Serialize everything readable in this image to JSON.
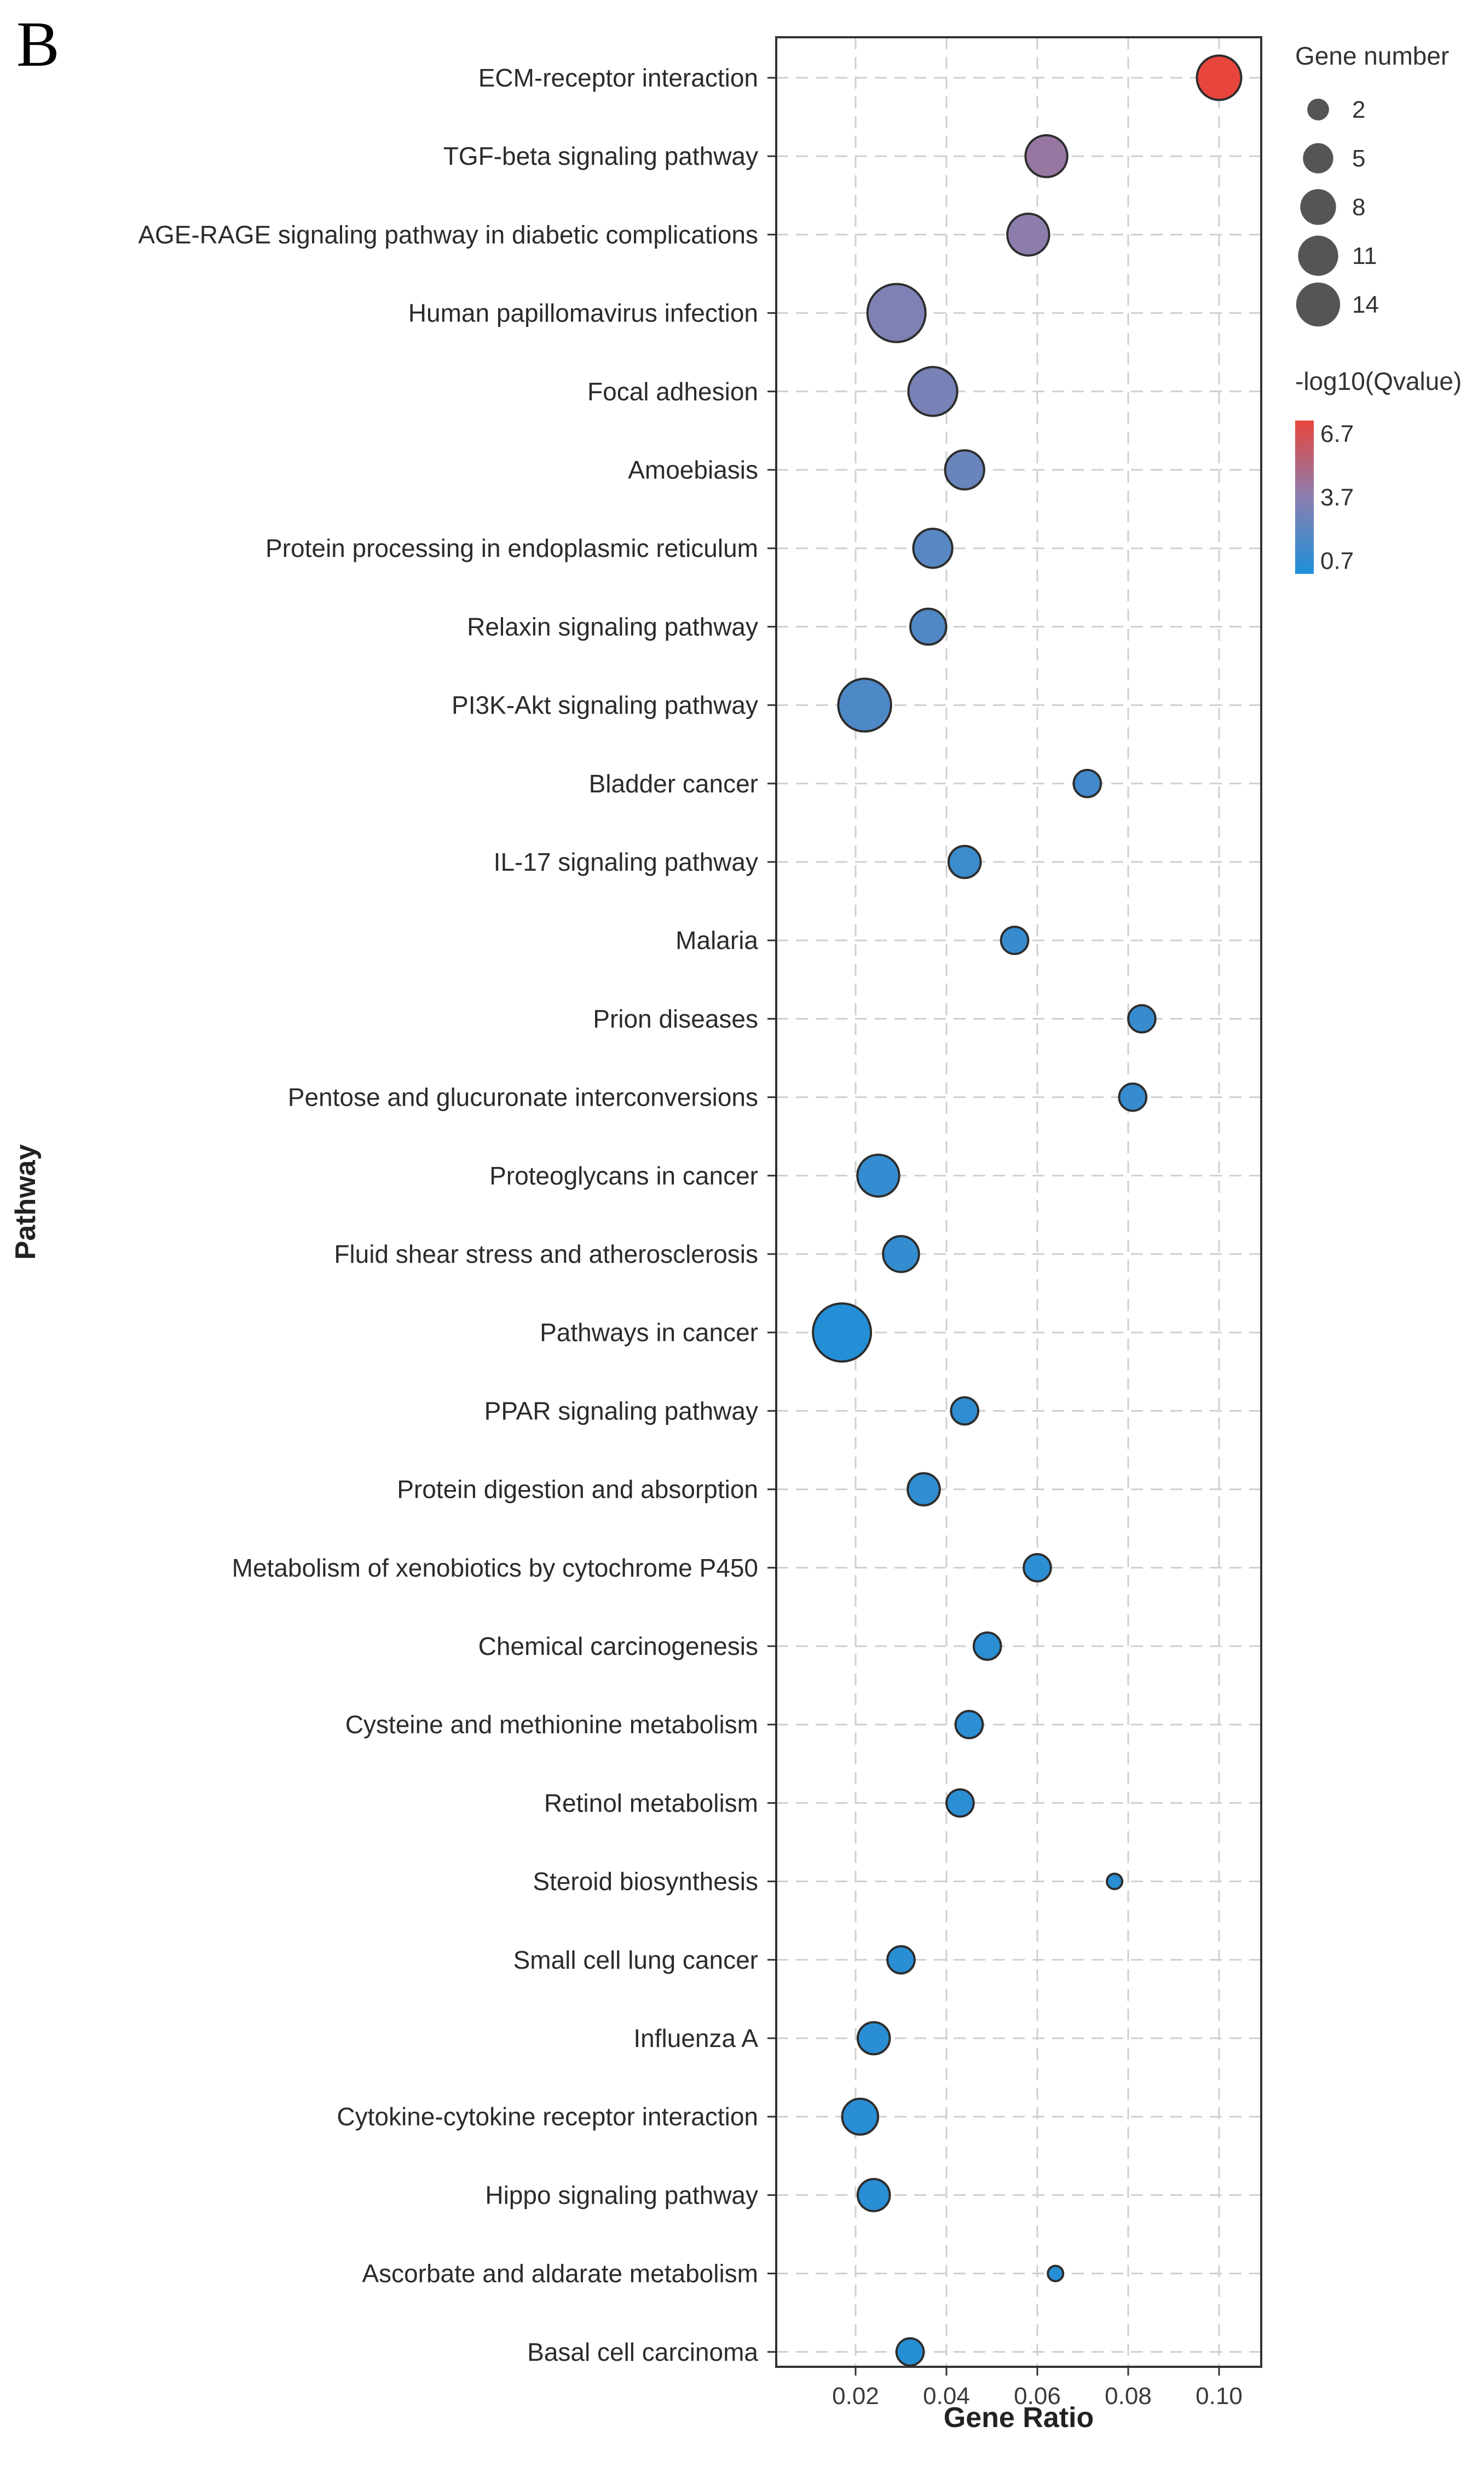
{
  "panel_label": "B",
  "chart_data": {
    "type": "scatter",
    "title": "",
    "xlabel": "Gene Ratio",
    "ylabel": "Pathway",
    "xlim": [
      0.0,
      0.1
    ],
    "xticks": [
      "0.02",
      "0.04",
      "0.06",
      "0.08",
      "0.10"
    ],
    "grid": true,
    "legend_placement": "right",
    "points": [
      {
        "pathway": "ECM-receptor interaction",
        "gene_ratio": 0.1,
        "gene_number": 7,
        "neg_log10_q": 6.7
      },
      {
        "pathway": "TGF-beta signaling pathway",
        "gene_ratio": 0.062,
        "gene_number": 6,
        "neg_log10_q": 4.1
      },
      {
        "pathway": "AGE-RAGE signaling pathway in diabetic complications",
        "gene_ratio": 0.058,
        "gene_number": 6,
        "neg_log10_q": 3.8
      },
      {
        "pathway": "Human papillomavirus infection",
        "gene_ratio": 0.029,
        "gene_number": 14,
        "neg_log10_q": 3.4
      },
      {
        "pathway": "Focal adhesion",
        "gene_ratio": 0.037,
        "gene_number": 9,
        "neg_log10_q": 3.2
      },
      {
        "pathway": "Amoebiasis",
        "gene_ratio": 0.044,
        "gene_number": 5,
        "neg_log10_q": 2.8
      },
      {
        "pathway": "Protein processing in endoplasmic reticulum",
        "gene_ratio": 0.037,
        "gene_number": 5,
        "neg_log10_q": 2.3
      },
      {
        "pathway": "Relaxin signaling pathway",
        "gene_ratio": 0.036,
        "gene_number": 4,
        "neg_log10_q": 2.1
      },
      {
        "pathway": "PI3K-Akt signaling pathway",
        "gene_ratio": 0.022,
        "gene_number": 11,
        "neg_log10_q": 2.0
      },
      {
        "pathway": "Bladder cancer",
        "gene_ratio": 0.071,
        "gene_number": 2,
        "neg_log10_q": 1.7
      },
      {
        "pathway": "IL-17 signaling pathway",
        "gene_ratio": 0.044,
        "gene_number": 3,
        "neg_log10_q": 1.5
      },
      {
        "pathway": "Malaria",
        "gene_ratio": 0.055,
        "gene_number": 2,
        "neg_log10_q": 1.4
      },
      {
        "pathway": "Prion diseases",
        "gene_ratio": 0.083,
        "gene_number": 2,
        "neg_log10_q": 1.4
      },
      {
        "pathway": "Pentose and glucuronate interconversions",
        "gene_ratio": 0.081,
        "gene_number": 2,
        "neg_log10_q": 1.4
      },
      {
        "pathway": "Proteoglycans in cancer",
        "gene_ratio": 0.025,
        "gene_number": 6,
        "neg_log10_q": 1.3
      },
      {
        "pathway": "Fluid shear stress and atherosclerosis",
        "gene_ratio": 0.03,
        "gene_number": 4,
        "neg_log10_q": 1.3
      },
      {
        "pathway": "Pathways in cancer",
        "gene_ratio": 0.017,
        "gene_number": 14,
        "neg_log10_q": 0.8
      },
      {
        "pathway": "PPAR signaling pathway",
        "gene_ratio": 0.044,
        "gene_number": 2,
        "neg_log10_q": 1.2
      },
      {
        "pathway": "Protein digestion and absorption",
        "gene_ratio": 0.035,
        "gene_number": 3,
        "neg_log10_q": 1.2
      },
      {
        "pathway": "Metabolism of xenobiotics by cytochrome P450",
        "gene_ratio": 0.06,
        "gene_number": 2,
        "neg_log10_q": 1.1
      },
      {
        "pathway": "Chemical carcinogenesis",
        "gene_ratio": 0.049,
        "gene_number": 2,
        "neg_log10_q": 1.1
      },
      {
        "pathway": "Cysteine and methionine metabolism",
        "gene_ratio": 0.045,
        "gene_number": 2,
        "neg_log10_q": 1.1
      },
      {
        "pathway": "Retinol metabolism",
        "gene_ratio": 0.043,
        "gene_number": 2,
        "neg_log10_q": 1.1
      },
      {
        "pathway": "Steroid biosynthesis",
        "gene_ratio": 0.077,
        "gene_number": 1,
        "neg_log10_q": 1.0
      },
      {
        "pathway": "Small cell lung cancer",
        "gene_ratio": 0.03,
        "gene_number": 2,
        "neg_log10_q": 1.0
      },
      {
        "pathway": "Influenza A",
        "gene_ratio": 0.024,
        "gene_number": 3,
        "neg_log10_q": 1.0
      },
      {
        "pathway": "Cytokine-cytokine receptor interaction",
        "gene_ratio": 0.021,
        "gene_number": 4,
        "neg_log10_q": 1.0
      },
      {
        "pathway": "Hippo signaling pathway",
        "gene_ratio": 0.024,
        "gene_number": 3,
        "neg_log10_q": 1.0
      },
      {
        "pathway": "Ascorbate and aldarate metabolism",
        "gene_ratio": 0.064,
        "gene_number": 1,
        "neg_log10_q": 0.9
      },
      {
        "pathway": "Basal cell carcinoma",
        "gene_ratio": 0.032,
        "gene_number": 2,
        "neg_log10_q": 0.9
      }
    ],
    "size_legend": {
      "title": "Gene number",
      "values": [
        2,
        5,
        8,
        11,
        14
      ],
      "labels": [
        "2",
        "5",
        "8",
        "11",
        "14"
      ]
    },
    "color_legend": {
      "title": "-log10(Qvalue)",
      "labels": [
        "6.7",
        "3.7",
        "0.7"
      ],
      "range": [
        0.7,
        6.7
      ],
      "colors": {
        "low": "#1e90d8",
        "mid": "#8a7fb0",
        "high": "#e8453c"
      }
    }
  }
}
